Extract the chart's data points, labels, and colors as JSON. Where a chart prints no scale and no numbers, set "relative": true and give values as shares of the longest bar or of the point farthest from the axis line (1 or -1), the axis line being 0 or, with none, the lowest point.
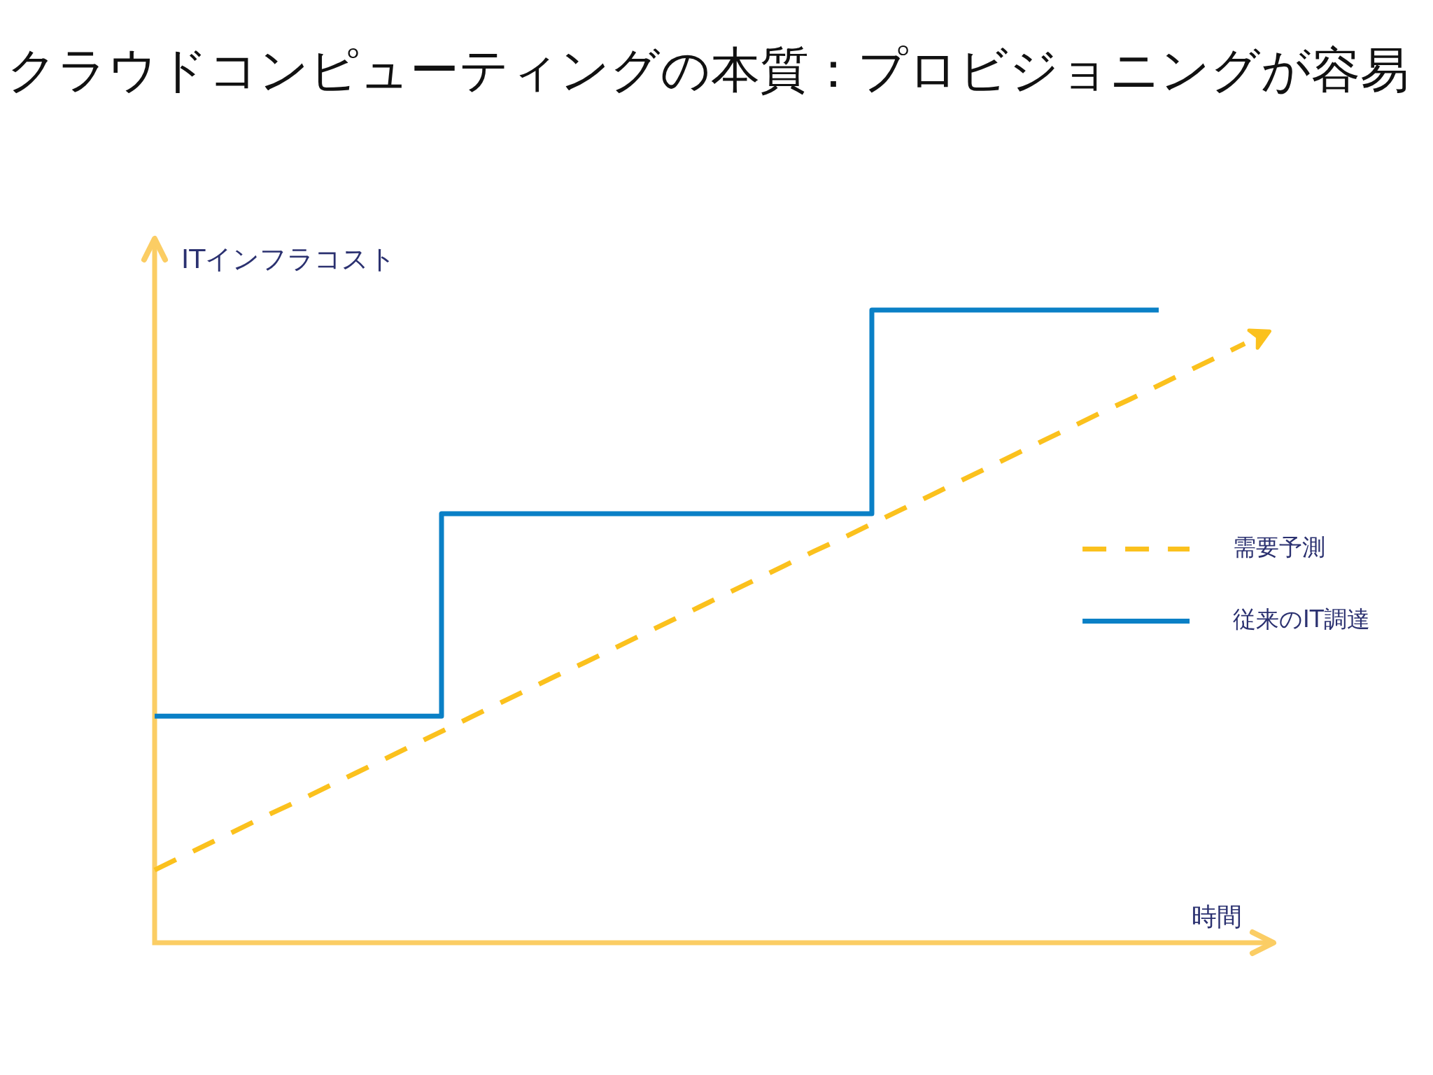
{
  "chart_data": {
    "type": "line",
    "title": "クラウドコンピューティングの本質：プロビジョニングが容易",
    "xlabel": "時間",
    "ylabel": "ITインフラコスト",
    "relative": true,
    "legend": "right",
    "marker": "none",
    "categories": [
      null,
      null,
      null,
      null,
      null,
      null,
      null,
      null,
      null,
      null,
      null,
      null,
      null,
      null,
      null,
      null,
      null,
      null,
      null,
      null,
      null,
      null,
      null,
      null,
      null,
      null,
      null,
      null,
      null,
      null,
      null,
      null,
      null,
      null,
      null,
      null,
      null,
      null,
      null,
      null
    ],
    "series": [
      {
        "name": "需要予測",
        "color": "#fbc11d",
        "line_style": "dashed",
        "values": [
          0.115,
          0.137,
          0.159,
          0.181,
          0.203,
          0.224,
          0.246,
          0.268,
          0.29,
          0.312,
          0.334,
          0.356,
          0.378,
          0.4,
          0.422,
          0.443,
          0.465,
          0.487,
          0.509,
          0.531,
          0.553,
          0.575,
          0.597,
          0.619,
          0.64,
          0.662,
          0.684,
          0.706,
          0.728,
          0.75,
          0.772,
          0.794,
          0.816,
          0.838,
          0.859,
          0.881,
          0.903,
          0.925,
          0.947,
          null
        ]
      },
      {
        "name": "従来のIT調達",
        "type": "step",
        "color": "#0a80c6",
        "line_style": "solid",
        "values": [
          0.358,
          0.358,
          0.358,
          0.358,
          0.358,
          0.358,
          0.358,
          0.358,
          0.358,
          0.358,
          0.678,
          0.678,
          0.678,
          0.678,
          0.678,
          0.678,
          0.678,
          0.678,
          0.678,
          0.678,
          0.678,
          0.678,
          0.678,
          0.678,
          0.678,
          1,
          1,
          1,
          1,
          1,
          1,
          1,
          1,
          1,
          1,
          1,
          null,
          null,
          null,
          null
        ]
      }
    ]
  }
}
